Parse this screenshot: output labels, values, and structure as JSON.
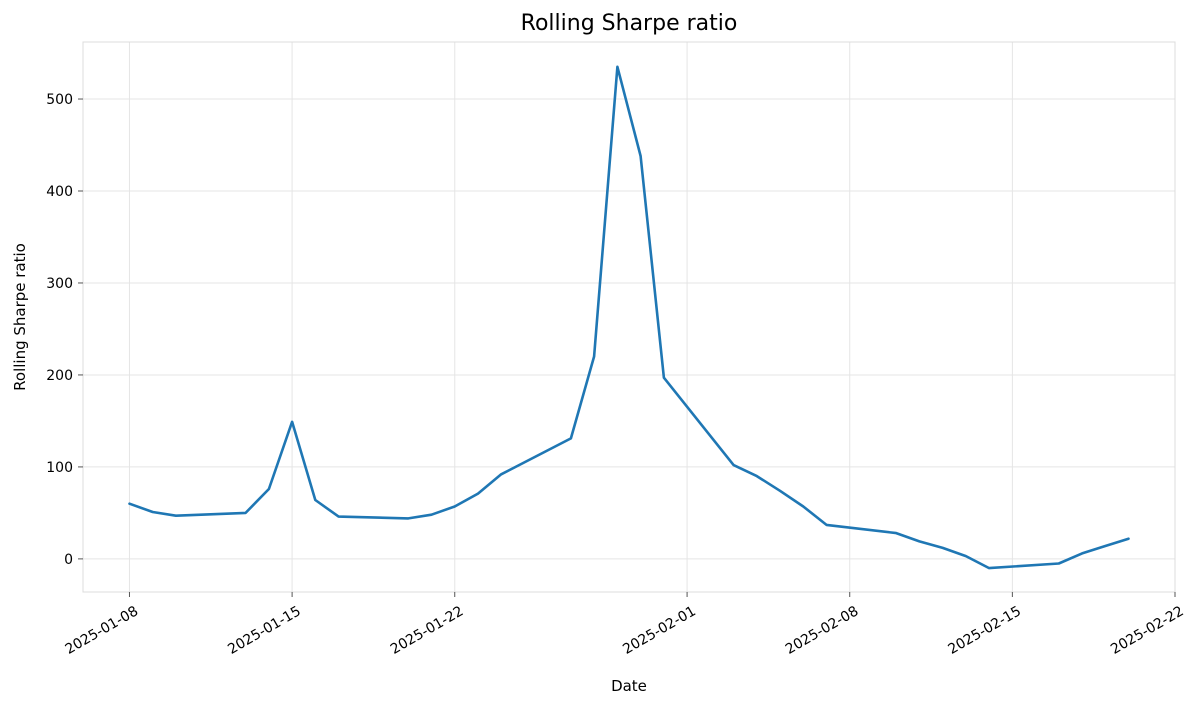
{
  "chart_data": {
    "type": "line",
    "title": "Rolling Sharpe ratio",
    "xlabel": "Date",
    "ylabel": "Rolling Sharpe ratio",
    "x_ticks": [
      "2025-01-08",
      "2025-01-15",
      "2025-01-22",
      "2025-02-01",
      "2025-02-08",
      "2025-02-15",
      "2025-02-22"
    ],
    "y_ticks": [
      0,
      100,
      200,
      300,
      400,
      500
    ],
    "xlim": [
      "2025-01-06",
      "2025-02-22"
    ],
    "ylim": [
      -36,
      562
    ],
    "grid": true,
    "color": "#1f77b4",
    "series": [
      {
        "x": [
          "2025-01-08",
          "2025-01-09",
          "2025-01-10",
          "2025-01-13",
          "2025-01-14",
          "2025-01-15",
          "2025-01-16",
          "2025-01-17",
          "2025-01-20",
          "2025-01-21",
          "2025-01-22",
          "2025-01-23",
          "2025-01-24",
          "2025-01-27",
          "2025-01-28",
          "2025-01-29",
          "2025-01-30",
          "2025-01-31",
          "2025-02-03",
          "2025-02-04",
          "2025-02-05",
          "2025-02-06",
          "2025-02-07",
          "2025-02-10",
          "2025-02-11",
          "2025-02-12",
          "2025-02-13",
          "2025-02-14",
          "2025-02-17",
          "2025-02-18",
          "2025-02-19",
          "2025-02-20"
        ],
        "values": [
          60,
          51,
          47,
          50,
          76,
          149,
          64,
          46,
          44,
          48,
          57,
          71,
          92,
          131,
          220,
          535,
          438,
          197,
          102,
          90,
          74,
          57,
          37,
          28,
          19,
          12,
          3,
          -10,
          -5,
          6,
          14,
          22
        ]
      }
    ]
  }
}
